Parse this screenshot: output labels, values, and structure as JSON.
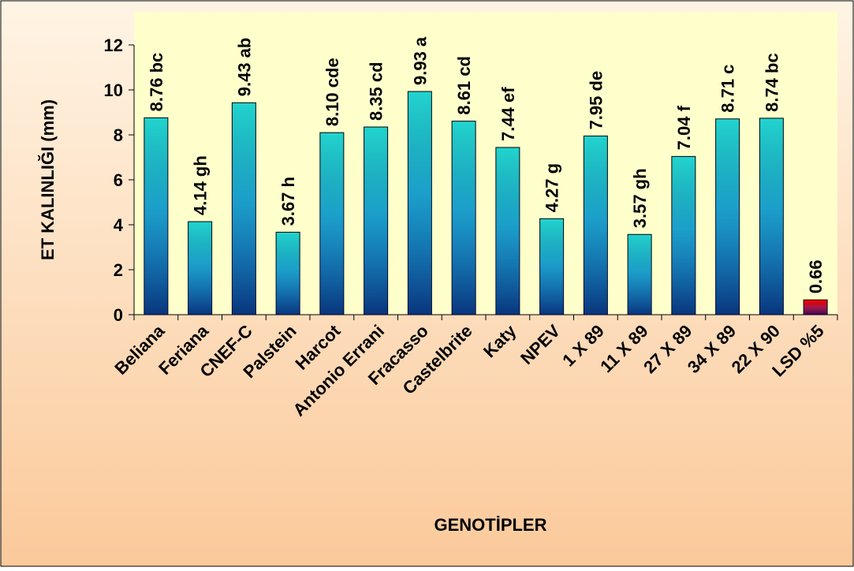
{
  "chart_data": {
    "type": "bar",
    "x_label": "GENOTİPLER",
    "y_label": "ET KALINLIĞI (mm)",
    "categories": [
      "Beliana",
      "Feriana",
      "CNEF-C",
      "Palstein",
      "Harcot",
      "Antonio Errani",
      "Fracasso",
      "Castelbrite",
      "Katy",
      "NPEV",
      "1 X 89",
      "11 X 89",
      "27 X 89",
      "34 X 89",
      "22 X 90",
      "LSD %5"
    ],
    "values": [
      8.76,
      4.14,
      9.43,
      3.67,
      8.1,
      8.35,
      9.93,
      8.61,
      7.44,
      4.27,
      7.95,
      3.57,
      7.04,
      8.71,
      8.74,
      0.66
    ],
    "value_labels": [
      "8.76 bc",
      "4.14 gh",
      "9.43 ab",
      "3.67 h",
      "8.10 cde",
      "8.35 cd",
      "9.93 a",
      "8.61 cd",
      "7.44 ef",
      "4.27 g",
      "7.95 de",
      "3.57 gh",
      "7.04 f",
      "8.71 c",
      "8.74 bc",
      "0.66"
    ],
    "colors": [
      "#22d4d0",
      "#22d4d0",
      "#22d4d0",
      "#22d4d0",
      "#22d4d0",
      "#22d4d0",
      "#22d4d0",
      "#22d4d0",
      "#22d4d0",
      "#22d4d0",
      "#22d4d0",
      "#22d4d0",
      "#22d4d0",
      "#22d4d0",
      "#22d4d0",
      "#ff0000"
    ],
    "ylim": [
      0,
      12
    ],
    "yticks": [
      0,
      2,
      4,
      6,
      8,
      10,
      12
    ]
  }
}
